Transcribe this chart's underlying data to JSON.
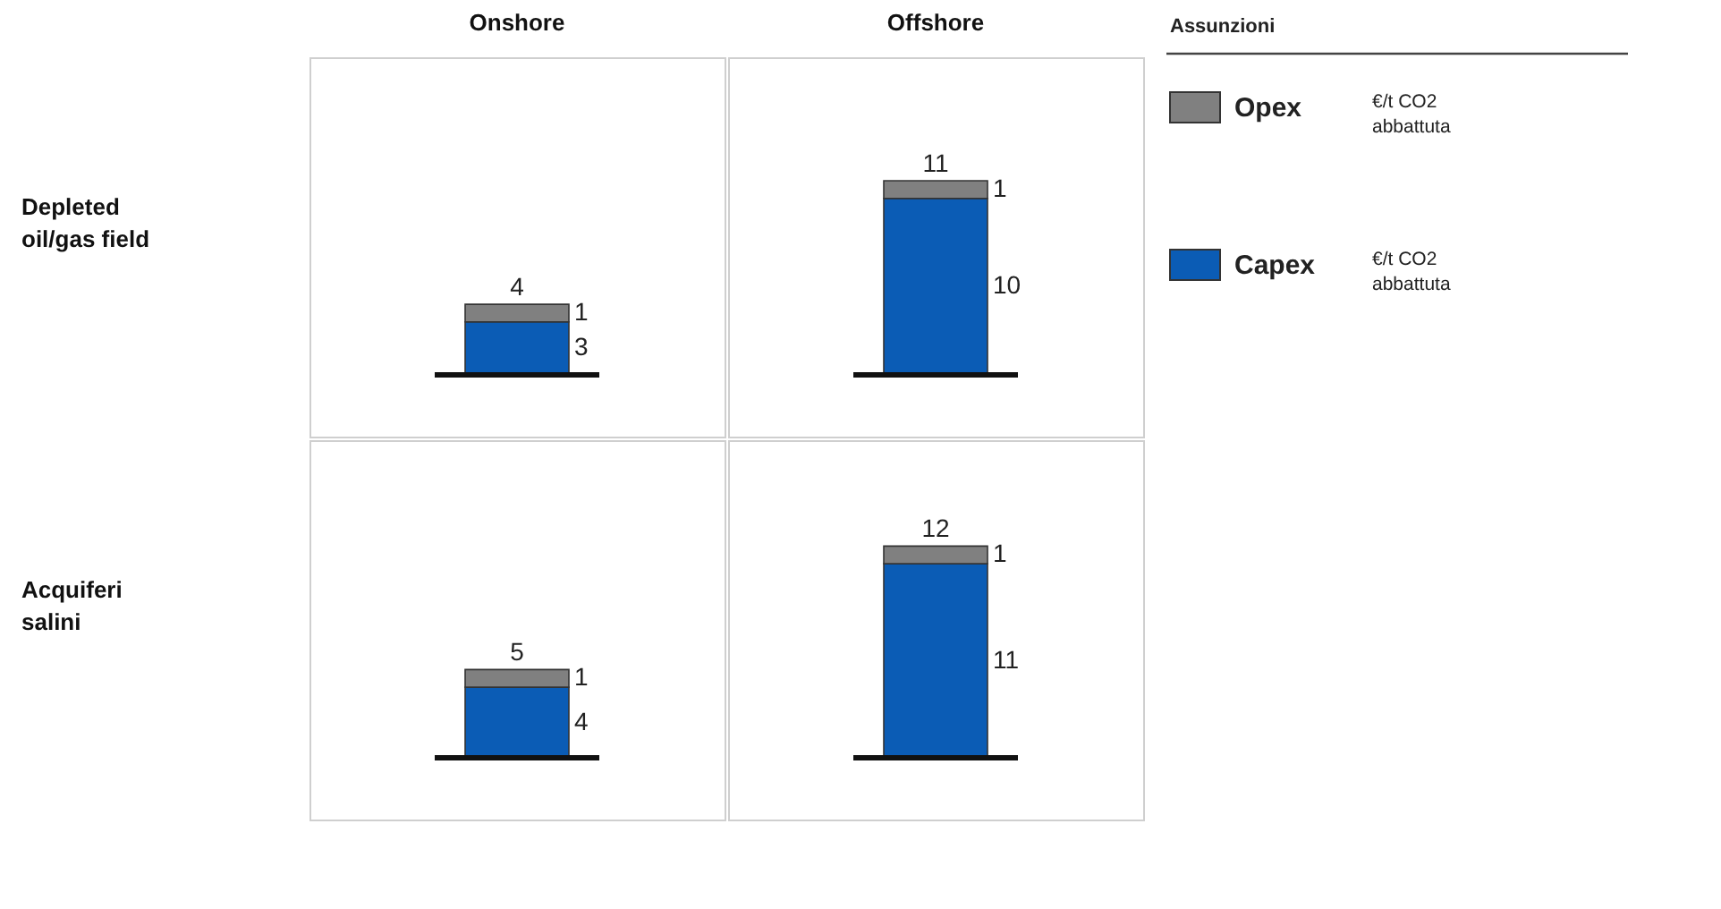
{
  "chart_data": [
    {
      "type": "bar",
      "title": "Onshore",
      "ylabel": "Depleted oil/gas field",
      "categories": [
        null
      ],
      "stacked": true,
      "ylim": [
        -3.5,
        18
      ],
      "tick_labels": false,
      "data_labels": true,
      "totals": [
        "4"
      ],
      "legend": "right",
      "legend_title": "Assunzioni",
      "annotations": [
        "€/t CO2 abbattuta",
        "€/t CO2 abbattuta"
      ],
      "ref_lines": [
        {
          "axis": "y",
          "value": 0,
          "color": "#111111"
        }
      ],
      "series": [
        {
          "name": "Capex",
          "color": "#0b5cb5",
          "values": [
            3
          ]
        },
        {
          "name": "Opex",
          "color": "#808080",
          "values": [
            1
          ]
        }
      ]
    },
    {
      "type": "bar",
      "title": "Offshore",
      "categories": [
        null
      ],
      "stacked": true,
      "ylim": [
        -3.5,
        18
      ],
      "tick_labels": false,
      "data_labels": true,
      "totals": [
        "11"
      ],
      "ref_lines": [
        {
          "axis": "y",
          "value": 0,
          "color": "#111111"
        }
      ],
      "series": [
        {
          "name": "Capex",
          "color": "#0b5cb5",
          "values": [
            10
          ]
        },
        {
          "name": "Opex",
          "color": "#808080",
          "values": [
            1
          ]
        }
      ]
    },
    {
      "type": "bar",
      "ylabel": "Acquiferi salini",
      "categories": [
        null
      ],
      "stacked": true,
      "ylim": [
        -3.5,
        18
      ],
      "tick_labels": false,
      "data_labels": true,
      "totals": [
        "5"
      ],
      "ref_lines": [
        {
          "axis": "y",
          "value": 0,
          "color": "#111111"
        }
      ],
      "series": [
        {
          "name": "Capex",
          "color": "#0b5cb5",
          "values": [
            4
          ]
        },
        {
          "name": "Opex",
          "color": "#808080",
          "values": [
            1
          ]
        }
      ]
    },
    {
      "type": "bar",
      "categories": [
        null
      ],
      "stacked": true,
      "ylim": [
        -3.5,
        18
      ],
      "tick_labels": false,
      "data_labels": true,
      "totals": [
        "12"
      ],
      "ref_lines": [
        {
          "axis": "y",
          "value": 0,
          "color": "#111111"
        }
      ],
      "series": [
        {
          "name": "Capex",
          "color": "#0b5cb5",
          "values": [
            11
          ]
        },
        {
          "name": "Opex",
          "color": "#808080",
          "values": [
            1
          ]
        }
      ]
    }
  ]
}
